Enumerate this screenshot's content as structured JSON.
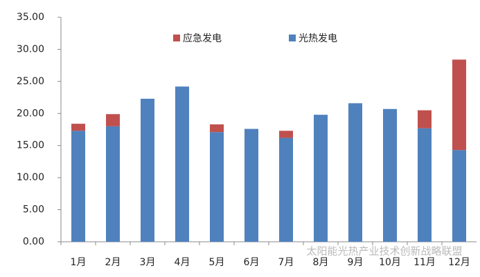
{
  "chart_data": {
    "type": "stacked-bar",
    "categories": [
      "1月",
      "2月",
      "3月",
      "4月",
      "5月",
      "6月",
      "7月",
      "8月",
      "9月",
      "10月",
      "11月",
      "12月"
    ],
    "series": [
      {
        "name": "光热发电",
        "color": "#4f81bd",
        "values": [
          17.3,
          18.0,
          22.3,
          24.2,
          17.1,
          17.6,
          16.2,
          19.8,
          21.6,
          20.7,
          17.7,
          14.3
        ]
      },
      {
        "name": "应急发电",
        "color": "#c0504d",
        "values": [
          1.1,
          1.9,
          0,
          0,
          1.2,
          0,
          1.1,
          0,
          0,
          0,
          2.8,
          14.1
        ]
      }
    ],
    "ylim": [
      0,
      35
    ],
    "yticks": [
      {
        "value": 0,
        "label": "0.00"
      },
      {
        "value": 5,
        "label": "5.00"
      },
      {
        "value": 10,
        "label": "10.00"
      },
      {
        "value": 15,
        "label": "15.00"
      },
      {
        "value": 20,
        "label": "20.00"
      },
      {
        "value": 25,
        "label": "25.00"
      },
      {
        "value": 30,
        "label": "30.00"
      },
      {
        "value": 35,
        "label": "35.00"
      }
    ],
    "grid": false,
    "watermark": "太阳能光热产业技术创新战略联盟"
  }
}
